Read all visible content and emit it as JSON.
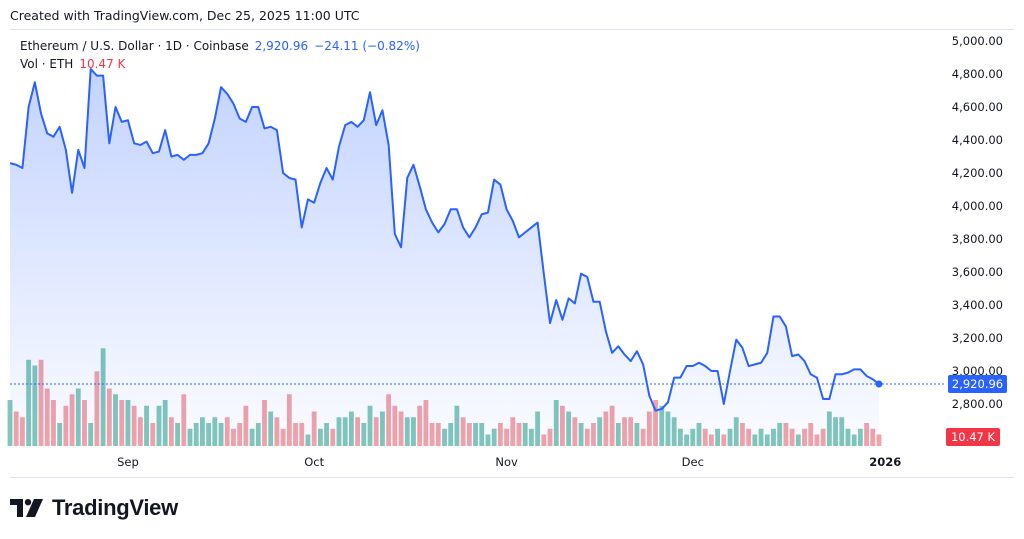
{
  "header": {
    "created_text": "Created with TradingView.com, Dec 25, 2025 11:00 UTC"
  },
  "legend": {
    "symbol": "Ethereum / U.S. Dollar · 1D · Coinbase",
    "last_price": "2,920.96",
    "change": "−24.11 (−0.82%)",
    "vol_label": "Vol · ETH",
    "vol_value": "10.47 K"
  },
  "badges": {
    "price": "2,920.96",
    "volume": "10.47 K"
  },
  "brand": {
    "name": "TradingView"
  },
  "colors": {
    "line": "#2962ff",
    "area_top": "rgba(41,98,255,0.28)",
    "area_bottom": "rgba(41,98,255,0.02)",
    "vol_up": "#81c7bb",
    "vol_down": "#f2a3a8",
    "price_badge": "#2962ff",
    "vol_badge": "#f23645",
    "axis_text": "#131722",
    "grid": "#f0f3fa"
  },
  "chart_data": {
    "type": "line",
    "title": "Ethereum / U.S. Dollar · 1D · Coinbase",
    "x_tick_labels": [
      "Sep",
      "Oct",
      "Nov",
      "Dec",
      "2026"
    ],
    "x_tick_days": [
      19,
      49,
      80,
      110,
      141
    ],
    "y_tick_labels": [
      "2,800.00",
      "3,000.00",
      "3,200.00",
      "3,400.00",
      "3,600.00",
      "3,800.00",
      "4,000.00",
      "4,200.00",
      "4,400.00",
      "4,600.00",
      "4,800.00",
      "5,000.00"
    ],
    "ylim": [
      2600,
      5000
    ],
    "grid": false,
    "start_date": "2025-08-13",
    "series": [
      {
        "name": "Ethereum / U.S. Dollar",
        "close": [
          4260,
          4250,
          4230,
          4600,
          4750,
          4560,
          4440,
          4420,
          4480,
          4340,
          4080,
          4340,
          4230,
          4830,
          4790,
          4790,
          4380,
          4600,
          4510,
          4520,
          4380,
          4370,
          4390,
          4320,
          4330,
          4460,
          4300,
          4310,
          4280,
          4310,
          4310,
          4320,
          4380,
          4530,
          4720,
          4680,
          4620,
          4530,
          4510,
          4600,
          4600,
          4470,
          4480,
          4460,
          4200,
          4170,
          4160,
          3870,
          4040,
          4020,
          4140,
          4230,
          4160,
          4360,
          4490,
          4510,
          4480,
          4520,
          4690,
          4490,
          4580,
          4370,
          3830,
          3750,
          4170,
          4250,
          4120,
          3980,
          3900,
          3840,
          3890,
          3980,
          3980,
          3870,
          3810,
          3870,
          3950,
          3960,
          4160,
          4130,
          3980,
          3910,
          3810,
          3840,
          3870,
          3900,
          3590,
          3290,
          3430,
          3310,
          3440,
          3410,
          3590,
          3570,
          3420,
          3420,
          3240,
          3110,
          3150,
          3100,
          3060,
          3120,
          3040,
          2850,
          2760,
          2770,
          2810,
          2960,
          2960,
          3030,
          3030,
          3050,
          3030,
          3000,
          3000,
          2800,
          3000,
          3190,
          3140,
          3030,
          3040,
          3050,
          3110,
          3330,
          3330,
          3270,
          3090,
          3100,
          3060,
          2980,
          2960,
          2830,
          2830,
          2980,
          2980,
          2990,
          3010,
          3010,
          2970,
          2950,
          2920.96
        ]
      }
    ],
    "volume": {
      "name": "Vol · ETH",
      "units": "thousand ETH",
      "last": 10.47,
      "values": [
        40,
        30,
        25,
        75,
        70,
        75,
        50,
        40,
        20,
        35,
        45,
        50,
        40,
        20,
        65,
        85,
        50,
        45,
        40,
        40,
        35,
        25,
        35,
        20,
        35,
        40,
        25,
        20,
        45,
        15,
        20,
        25,
        20,
        25,
        20,
        25,
        15,
        20,
        35,
        15,
        20,
        40,
        30,
        25,
        15,
        45,
        20,
        20,
        10,
        30,
        15,
        20,
        15,
        25,
        25,
        30,
        25,
        20,
        35,
        25,
        30,
        45,
        35,
        30,
        25,
        25,
        35,
        40,
        20,
        20,
        15,
        20,
        35,
        25,
        20,
        20,
        20,
        10,
        15,
        20,
        15,
        25,
        20,
        20,
        15,
        30,
        10,
        15,
        40,
        35,
        30,
        25,
        20,
        15,
        20,
        25,
        30,
        35,
        20,
        25,
        25,
        20,
        15,
        30,
        40,
        35,
        30,
        25,
        15,
        10,
        15,
        20,
        15,
        10,
        15,
        10,
        15,
        25,
        20,
        15,
        10,
        15,
        10,
        15,
        20,
        20,
        15,
        10,
        15,
        20,
        10,
        15,
        30,
        25,
        25,
        15,
        10,
        15,
        20,
        15,
        10
      ]
    }
  }
}
